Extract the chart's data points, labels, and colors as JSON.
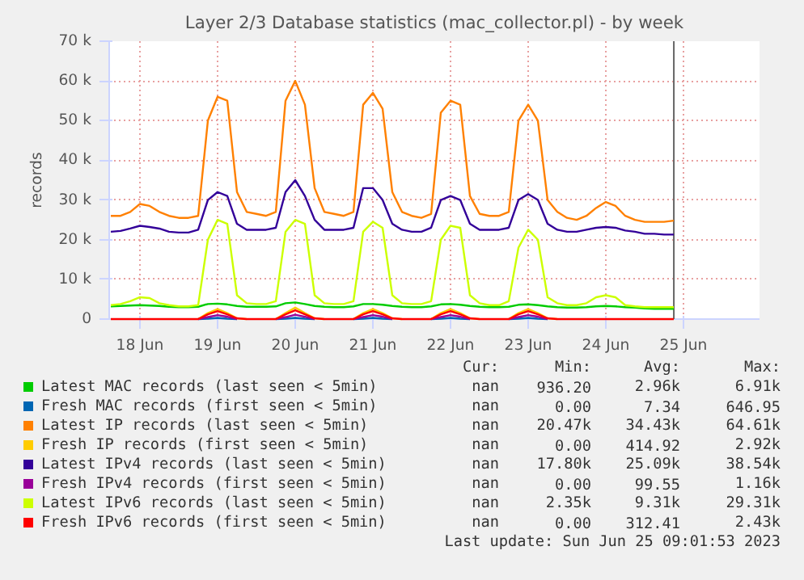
{
  "chart_data": {
    "type": "line",
    "title": "Layer 2/3 Database statistics (mac_collector.pl) - by week",
    "ylabel": "records",
    "x": [
      "2023-06-18T03:00",
      "2023-06-18T06:00",
      "2023-06-18T09:00",
      "2023-06-18T12:00",
      "2023-06-18T15:00",
      "2023-06-18T18:00",
      "2023-06-18T21:00",
      "2023-06-19T00:00",
      "2023-06-19T03:00",
      "2023-06-19T06:00",
      "2023-06-19T09:00",
      "2023-06-19T12:00",
      "2023-06-19T15:00",
      "2023-06-19T18:00",
      "2023-06-19T21:00",
      "2023-06-20T00:00",
      "2023-06-20T03:00",
      "2023-06-20T06:00",
      "2023-06-20T09:00",
      "2023-06-20T12:00",
      "2023-06-20T15:00",
      "2023-06-20T18:00",
      "2023-06-20T21:00",
      "2023-06-21T00:00",
      "2023-06-21T03:00",
      "2023-06-21T06:00",
      "2023-06-21T09:00",
      "2023-06-21T12:00",
      "2023-06-21T15:00",
      "2023-06-21T18:00",
      "2023-06-21T21:00",
      "2023-06-22T00:00",
      "2023-06-22T03:00",
      "2023-06-22T06:00",
      "2023-06-22T09:00",
      "2023-06-22T12:00",
      "2023-06-22T15:00",
      "2023-06-22T18:00",
      "2023-06-22T21:00",
      "2023-06-23T00:00",
      "2023-06-23T03:00",
      "2023-06-23T06:00",
      "2023-06-23T09:00",
      "2023-06-23T12:00",
      "2023-06-23T15:00",
      "2023-06-23T18:00",
      "2023-06-23T21:00",
      "2023-06-24T00:00",
      "2023-06-24T03:00",
      "2023-06-24T06:00",
      "2023-06-24T09:00",
      "2023-06-24T12:00",
      "2023-06-24T15:00",
      "2023-06-24T18:00",
      "2023-06-24T21:00",
      "2023-06-25T00:00",
      "2023-06-25T03:00",
      "2023-06-25T06:00",
      "2023-06-25T09:00"
    ],
    "series": [
      {
        "name": "Latest MAC records (last seen < 5min)",
        "color": "#00cc00",
        "values": [
          3200,
          3300,
          3400,
          3500,
          3400,
          3300,
          3100,
          3000,
          3000,
          3100,
          3800,
          3900,
          3700,
          3300,
          3100,
          3100,
          3100,
          3200,
          4000,
          4200,
          3800,
          3300,
          3100,
          3000,
          3000,
          3200,
          3800,
          3800,
          3600,
          3300,
          3100,
          3000,
          3000,
          3200,
          3700,
          3800,
          3600,
          3300,
          3100,
          3000,
          3000,
          3100,
          3600,
          3700,
          3500,
          3200,
          3000,
          2900,
          2900,
          3000,
          3200,
          3300,
          3200,
          3000,
          2900,
          2700,
          2600,
          2600,
          2600
        ]
      },
      {
        "name": "Fresh MAC records (first seen < 5min)",
        "color": "#0066b3",
        "values": [
          null,
          null,
          null,
          null,
          null,
          null,
          null,
          null,
          null,
          0,
          100,
          300,
          100,
          0,
          null,
          null,
          null,
          0,
          100,
          300,
          100,
          0,
          null,
          null,
          null,
          0,
          100,
          300,
          100,
          0,
          null,
          null,
          null,
          0,
          100,
          300,
          100,
          0,
          null,
          null,
          null,
          0,
          100,
          300,
          100,
          0,
          null,
          null,
          null,
          null,
          null,
          null,
          null,
          null,
          null,
          null,
          null,
          null,
          null
        ]
      },
      {
        "name": "Latest IP records (last seen < 5min)",
        "color": "#ff8000",
        "values": [
          26000,
          26000,
          27000,
          29000,
          28500,
          27000,
          26000,
          25500,
          25500,
          26000,
          50000,
          56000,
          55000,
          32000,
          27000,
          26500,
          26000,
          27000,
          55000,
          60000,
          54000,
          33000,
          27000,
          26500,
          26000,
          27000,
          54000,
          57000,
          53000,
          32000,
          27000,
          26000,
          25500,
          26500,
          52000,
          55000,
          54000,
          31000,
          26500,
          26000,
          26000,
          27000,
          50000,
          54000,
          50000,
          30000,
          27000,
          25500,
          25000,
          26000,
          28000,
          29500,
          28500,
          26000,
          25000,
          24500,
          24500,
          24500,
          24800
        ]
      },
      {
        "name": "Fresh IP records (first seen < 5min)",
        "color": "#ffcc00",
        "values": [
          null,
          null,
          null,
          null,
          null,
          null,
          null,
          null,
          null,
          0,
          1500,
          2500,
          1500,
          200,
          0,
          null,
          null,
          0,
          1500,
          2900,
          1500,
          200,
          0,
          null,
          null,
          0,
          1500,
          2500,
          1500,
          200,
          0,
          null,
          null,
          0,
          1500,
          2500,
          1500,
          200,
          0,
          null,
          null,
          0,
          1500,
          2500,
          1500,
          200,
          0,
          null,
          null,
          null,
          null,
          null,
          null,
          null,
          null,
          null,
          null,
          null,
          null
        ]
      },
      {
        "name": "Latest IPv4 records (last seen < 5min)",
        "color": "#330099",
        "values": [
          22000,
          22200,
          22800,
          23500,
          23200,
          22800,
          22000,
          21800,
          21800,
          22500,
          30000,
          32000,
          31000,
          24000,
          22500,
          22500,
          22500,
          23000,
          32000,
          35000,
          31000,
          25000,
          22500,
          22500,
          22500,
          23000,
          33000,
          33000,
          30000,
          24000,
          22500,
          22000,
          22000,
          23000,
          30000,
          31000,
          30000,
          24000,
          22500,
          22500,
          22500,
          23000,
          30000,
          31500,
          30000,
          24000,
          22500,
          22000,
          22000,
          22500,
          23000,
          23200,
          23000,
          22300,
          22000,
          21500,
          21500,
          21300,
          21300
        ]
      },
      {
        "name": "Fresh IPv4 records (first seen < 5min)",
        "color": "#990099",
        "values": [
          null,
          null,
          null,
          null,
          null,
          null,
          null,
          null,
          null,
          0,
          500,
          1000,
          600,
          0,
          null,
          null,
          null,
          0,
          500,
          1100,
          600,
          0,
          null,
          null,
          null,
          0,
          500,
          1000,
          600,
          0,
          null,
          null,
          null,
          0,
          500,
          1000,
          600,
          0,
          null,
          null,
          null,
          0,
          500,
          1000,
          600,
          0,
          null,
          null,
          null,
          null,
          null,
          null,
          null,
          null,
          null,
          null,
          null,
          null,
          null
        ]
      },
      {
        "name": "Latest IPv6 records (last seen < 5min)",
        "color": "#ccff00",
        "values": [
          3500,
          3800,
          4500,
          5500,
          5300,
          4000,
          3500,
          3200,
          3200,
          3500,
          20000,
          25000,
          24000,
          6000,
          4000,
          3800,
          3800,
          4500,
          22000,
          25000,
          24000,
          6000,
          4000,
          3800,
          3800,
          4500,
          22000,
          24500,
          23000,
          6000,
          4000,
          3800,
          3800,
          4500,
          20000,
          23500,
          23000,
          6000,
          4000,
          3500,
          3500,
          4500,
          18000,
          22500,
          20000,
          5500,
          4000,
          3500,
          3500,
          4000,
          5500,
          6000,
          5500,
          3500,
          3200,
          3000,
          3000,
          3000,
          3000
        ]
      },
      {
        "name": "Fresh IPv6 records (first seen < 5min)",
        "color": "#ff0000",
        "values": [
          0,
          0,
          0,
          0,
          0,
          0,
          0,
          0,
          0,
          0,
          1200,
          2000,
          1200,
          200,
          0,
          0,
          0,
          0,
          1200,
          2200,
          1200,
          200,
          0,
          0,
          0,
          0,
          1200,
          2000,
          1200,
          200,
          0,
          0,
          0,
          0,
          1200,
          2000,
          1200,
          200,
          0,
          0,
          0,
          0,
          1200,
          2000,
          1200,
          200,
          0,
          0,
          0,
          0,
          0,
          0,
          0,
          0,
          0,
          0,
          0,
          0,
          0
        ]
      }
    ],
    "xlim": [
      "2023-06-18T02:30",
      "2023-06-26T11:30"
    ],
    "xticks": [
      {
        "value": "2023-06-18T12:00",
        "label": "18 Jun"
      },
      {
        "value": "2023-06-19T12:00",
        "label": "19 Jun"
      },
      {
        "value": "2023-06-20T12:00",
        "label": "20 Jun"
      },
      {
        "value": "2023-06-21T12:00",
        "label": "21 Jun"
      },
      {
        "value": "2023-06-22T12:00",
        "label": "22 Jun"
      },
      {
        "value": "2023-06-23T12:00",
        "label": "23 Jun"
      },
      {
        "value": "2023-06-24T12:00",
        "label": "24 Jun"
      },
      {
        "value": "2023-06-25T12:00",
        "label": "25 Jun"
      }
    ],
    "ylim": [
      0,
      70000
    ],
    "yticks": [
      {
        "value": 0,
        "label": "0"
      },
      {
        "value": 10000,
        "label": "10 k"
      },
      {
        "value": 20000,
        "label": "20 k"
      },
      {
        "value": 30000,
        "label": "30 k"
      },
      {
        "value": 40000,
        "label": "40 k"
      },
      {
        "value": 50000,
        "label": "50 k"
      },
      {
        "value": 60000,
        "label": "60 k"
      },
      {
        "value": 70000,
        "label": "70 k"
      }
    ],
    "ref_lines": [
      {
        "axis": "x",
        "value": "2023-06-25T09:01",
        "color": "#666666"
      }
    ],
    "grid": true,
    "legend": "bottom",
    "annotations": [
      "Cur:",
      "Min:",
      "Avg:",
      "Max:",
      "nan",
      "936.20",
      "2.96k",
      "6.91k",
      "nan",
      "0.00",
      "7.34",
      "646.95",
      "nan",
      "20.47k",
      "34.43k",
      "64.61k",
      "nan",
      "0.00",
      "414.92",
      "2.92k",
      "nan",
      "17.80k",
      "25.09k",
      "38.54k",
      "nan",
      "0.00",
      "99.55",
      "1.16k",
      "nan",
      "2.35k",
      "9.31k",
      "29.31k",
      "nan",
      "0.00",
      "312.41",
      "2.43k",
      "Last update: Sun Jun 25 09:01:53 2023"
    ]
  }
}
